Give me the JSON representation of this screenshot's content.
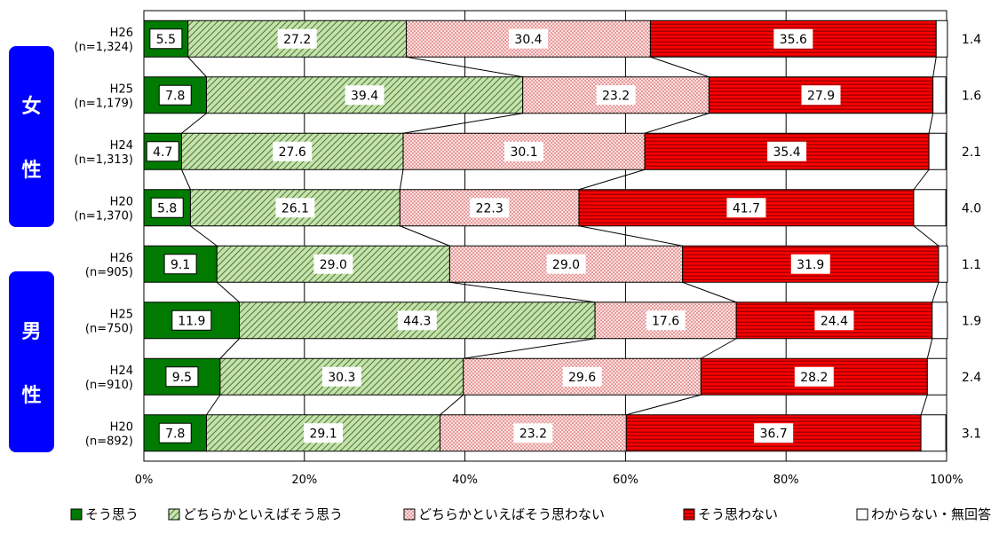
{
  "chart_data": {
    "type": "bar",
    "orientation": "horizontal",
    "stacked": true,
    "percent": true,
    "xlim": [
      0,
      100
    ],
    "x_ticks": [
      "0%",
      "20%",
      "40%",
      "60%",
      "80%",
      "100%"
    ],
    "grid": true,
    "legend_position": "bottom",
    "groups": [
      {
        "label": "女性",
        "rows": [
          0,
          1,
          2,
          3
        ]
      },
      {
        "label": "男性",
        "rows": [
          4,
          5,
          6,
          7
        ]
      }
    ],
    "categories": [
      {
        "year": "H26",
        "n": "(n=1,324)"
      },
      {
        "year": "H25",
        "n": "(n=1,179)"
      },
      {
        "year": "H24",
        "n": "(n=1,313)"
      },
      {
        "year": "H20",
        "n": "(n=1,370)"
      },
      {
        "year": "H26",
        "n": "(n=905)"
      },
      {
        "year": "H25",
        "n": "(n=750)"
      },
      {
        "year": "H24",
        "n": "(n=910)"
      },
      {
        "year": "H20",
        "n": "(n=892)"
      }
    ],
    "series": [
      {
        "name": "そう思う",
        "color": "#007a00",
        "pattern": "solid",
        "values": [
          5.5,
          7.8,
          4.7,
          5.8,
          9.1,
          11.9,
          9.5,
          7.8
        ]
      },
      {
        "name": "どちらかといえばそう思う",
        "color": "#4a8a2a",
        "pattern": "diagonal",
        "values": [
          27.2,
          39.4,
          27.6,
          26.1,
          29.0,
          44.3,
          30.3,
          29.1
        ]
      },
      {
        "name": "どちらかといえばそう思わない",
        "color": "#d03030",
        "pattern": "dots",
        "values": [
          30.4,
          23.2,
          30.1,
          22.3,
          29.0,
          17.6,
          29.6,
          23.2
        ]
      },
      {
        "name": "そう思わない",
        "color": "#ff0000",
        "pattern": "horizontal",
        "values": [
          35.6,
          27.9,
          35.4,
          41.7,
          31.9,
          24.4,
          28.2,
          36.7
        ]
      },
      {
        "name": "わからない・無回答",
        "color": "#ffffff",
        "pattern": "none",
        "values": [
          1.4,
          1.6,
          2.1,
          4.0,
          1.1,
          1.9,
          2.4,
          3.1
        ]
      }
    ]
  }
}
